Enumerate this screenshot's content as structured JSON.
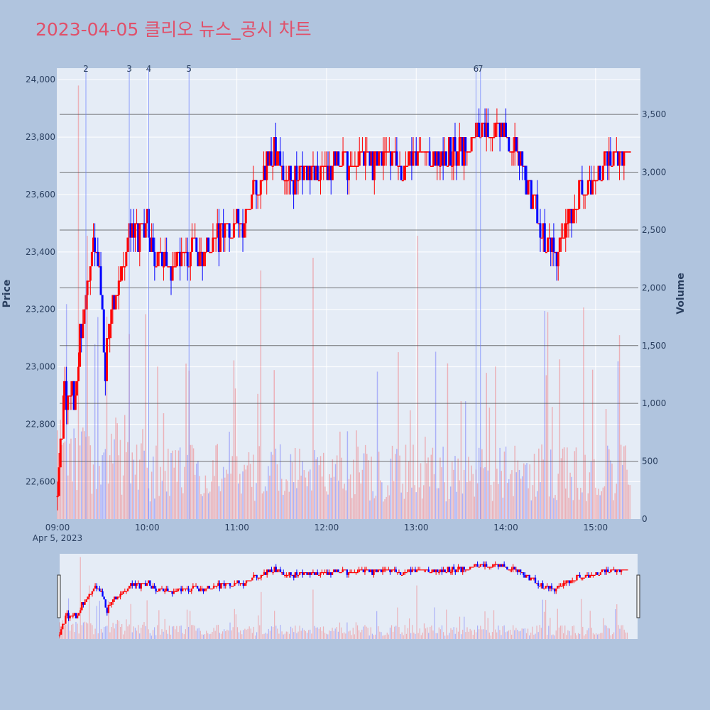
{
  "title": "2023-04-05 클리오 뉴스_공시 차트",
  "colors": {
    "background": "#b0c4de",
    "plot_bg": "#e5ecf6",
    "up": "#ff0000",
    "down": "#0000ff",
    "title": "#e0506a",
    "hline": "#555555"
  },
  "chart_data": {
    "type": "candlestick",
    "xlabel": "",
    "ylabel": "Price",
    "y2label": "Volume",
    "x_range": [
      "09:00",
      "15:30"
    ],
    "x_ticks": [
      "09:00",
      "10:00",
      "11:00",
      "12:00",
      "13:00",
      "14:00",
      "15:00"
    ],
    "x_date_label": "Apr 5, 2023",
    "price_range": [
      22470,
      24040
    ],
    "price_ticks": [
      "22,600",
      "22,800",
      "23,000",
      "23,200",
      "23,400",
      "23,600",
      "23,800",
      "24,000"
    ],
    "price_tick_values": [
      22600,
      22800,
      23000,
      23200,
      23400,
      23600,
      23800,
      24000
    ],
    "volume_range": [
      0,
      3900
    ],
    "volume_ticks": [
      "0",
      "500",
      "1,000",
      "1,500",
      "2,000",
      "2,500",
      "3,000",
      "3,500"
    ],
    "volume_tick_values": [
      0,
      500,
      1000,
      1500,
      2000,
      2500,
      3000,
      3500
    ],
    "horizontal_lines_volume": [
      500,
      1000,
      1500,
      2000,
      2500,
      3000,
      3500
    ],
    "news_markers": [
      {
        "label": "2",
        "time": "09:19"
      },
      {
        "label": "3",
        "time": "09:48"
      },
      {
        "label": "4",
        "time": "10:01"
      },
      {
        "label": "5",
        "time": "10:28"
      },
      {
        "label": "6",
        "time": "13:40"
      },
      {
        "label": "7",
        "time": "13:43"
      }
    ],
    "price_path": [
      [
        "09:00",
        22560
      ],
      [
        "09:02",
        22700
      ],
      [
        "09:04",
        22900
      ],
      [
        "09:08",
        22930
      ],
      [
        "09:12",
        22880
      ],
      [
        "09:15",
        23100
      ],
      [
        "09:18",
        23200
      ],
      [
        "09:21",
        23300
      ],
      [
        "09:24",
        23400
      ],
      [
        "09:27",
        23350
      ],
      [
        "09:30",
        23200
      ],
      [
        "09:32",
        22980
      ],
      [
        "09:34",
        23150
      ],
      [
        "09:37",
        23250
      ],
      [
        "09:40",
        23250
      ],
      [
        "09:43",
        23300
      ],
      [
        "09:45",
        23400
      ],
      [
        "09:48",
        23480
      ],
      [
        "09:52",
        23480
      ],
      [
        "09:56",
        23450
      ],
      [
        "10:00",
        23500
      ],
      [
        "10:03",
        23400
      ],
      [
        "10:07",
        23380
      ],
      [
        "10:12",
        23380
      ],
      [
        "10:16",
        23330
      ],
      [
        "10:20",
        23380
      ],
      [
        "10:25",
        23350
      ],
      [
        "10:30",
        23400
      ],
      [
        "10:35",
        23400
      ],
      [
        "10:40",
        23420
      ],
      [
        "10:45",
        23430
      ],
      [
        "10:50",
        23480
      ],
      [
        "10:55",
        23470
      ],
      [
        "11:00",
        23500
      ],
      [
        "11:05",
        23520
      ],
      [
        "11:10",
        23600
      ],
      [
        "11:15",
        23600
      ],
      [
        "11:20",
        23700
      ],
      [
        "11:25",
        23770
      ],
      [
        "11:30",
        23680
      ],
      [
        "11:35",
        23660
      ],
      [
        "11:40",
        23650
      ],
      [
        "11:45",
        23680
      ],
      [
        "11:50",
        23680
      ],
      [
        "11:55",
        23670
      ],
      [
        "12:00",
        23690
      ],
      [
        "12:05",
        23710
      ],
      [
        "12:10",
        23730
      ],
      [
        "12:15",
        23700
      ],
      [
        "12:20",
        23720
      ],
      [
        "12:25",
        23740
      ],
      [
        "12:30",
        23710
      ],
      [
        "12:35",
        23740
      ],
      [
        "12:40",
        23750
      ],
      [
        "12:45",
        23730
      ],
      [
        "12:50",
        23710
      ],
      [
        "12:55",
        23740
      ],
      [
        "13:00",
        23720
      ],
      [
        "13:05",
        23730
      ],
      [
        "13:10",
        23710
      ],
      [
        "13:15",
        23720
      ],
      [
        "13:20",
        23730
      ],
      [
        "13:25",
        23740
      ],
      [
        "13:30",
        23760
      ],
      [
        "13:35",
        23770
      ],
      [
        "13:40",
        23820
      ],
      [
        "13:45",
        23820
      ],
      [
        "13:50",
        23790
      ],
      [
        "13:55",
        23840
      ],
      [
        "14:00",
        23790
      ],
      [
        "14:05",
        23760
      ],
      [
        "14:10",
        23720
      ],
      [
        "14:15",
        23620
      ],
      [
        "14:20",
        23550
      ],
      [
        "14:25",
        23450
      ],
      [
        "14:30",
        23400
      ],
      [
        "14:35",
        23380
      ],
      [
        "14:40",
        23500
      ],
      [
        "14:45",
        23560
      ],
      [
        "14:50",
        23600
      ],
      [
        "14:55",
        23640
      ],
      [
        "15:00",
        23660
      ],
      [
        "15:05",
        23700
      ],
      [
        "15:10",
        23720
      ],
      [
        "15:15",
        23730
      ],
      [
        "15:20",
        23760
      ],
      [
        "15:23",
        23780
      ]
    ]
  }
}
